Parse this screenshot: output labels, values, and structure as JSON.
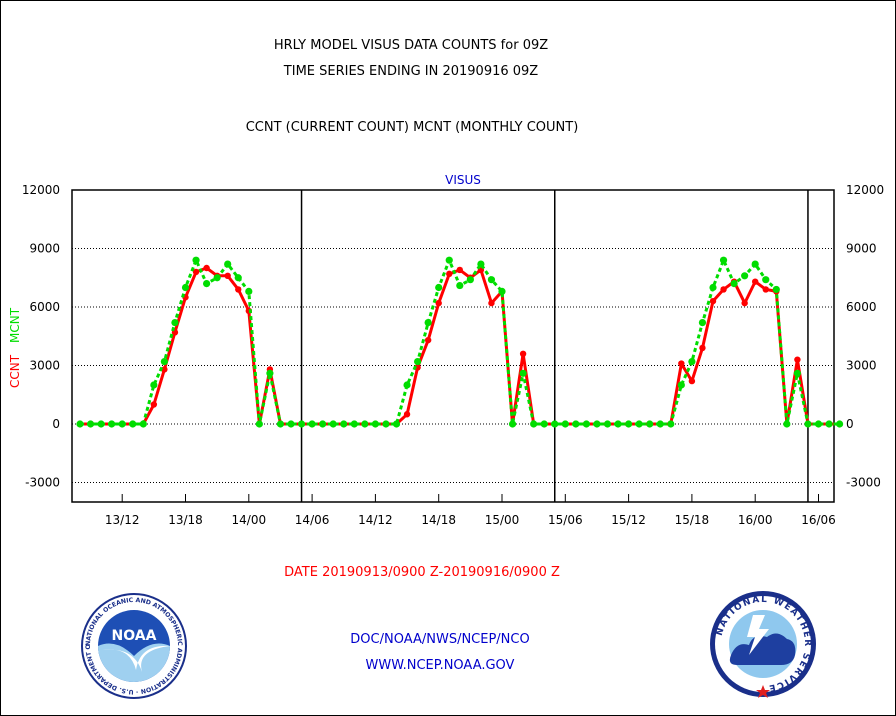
{
  "header": {
    "title_line1": "HRLY MODEL VISUS DATA COUNTS for 09Z",
    "title_line2": "TIME SERIES ENDING IN 20190916 09Z",
    "subtitle": "CCNT (CURRENT COUNT) MCNT (MONTHLY COUNT)"
  },
  "footer": {
    "date_range": "DATE 20190913/0900 Z-20190916/0900 Z",
    "org_line": "DOC/NOAA/NWS/NCEP/NCO",
    "url_line": "WWW.NCEP.NOAA.GOV"
  },
  "logos": {
    "noaa": {
      "center_text": "NOAA",
      "ring_text": "NATIONAL OCEANIC AND ATMOSPHERIC ADMINISTRATION · U.S. DEPARTMENT OF COMMERCE"
    },
    "nws": {
      "ring_text": "NATIONAL WEATHER SERVICE"
    }
  },
  "colors": {
    "ccnt": "#ff0000",
    "mcnt": "#00dd00",
    "blue_text": "#0000cc",
    "red_text": "#ff0000"
  },
  "chart_data": {
    "type": "line",
    "title": "VISUS",
    "ylabel_left": [
      "CCNT",
      "MCNT"
    ],
    "ylim": [
      -4000,
      12000
    ],
    "yticks": [
      -3000,
      0,
      3000,
      6000,
      9000,
      12000
    ],
    "x_unit": "hour",
    "xlim": [
      0,
      72.8
    ],
    "xtick_hours": [
      4,
      10,
      16,
      22,
      28,
      34,
      40,
      46,
      52,
      58,
      64,
      70
    ],
    "xtick_labels": [
      "13/12",
      "13/18",
      "14/00",
      "14/06",
      "14/12",
      "14/18",
      "15/00",
      "15/06",
      "15/12",
      "15/18",
      "16/00",
      "16/06"
    ],
    "day_boundary_hours": [
      21,
      45,
      69
    ],
    "series": [
      {
        "name": "CCNT",
        "color": "#ff0000",
        "x": [
          0,
          1,
          2,
          3,
          4,
          5,
          6,
          7,
          8,
          9,
          10,
          11,
          12,
          13,
          14,
          15,
          16,
          17,
          18,
          19,
          20,
          21,
          22,
          23,
          24,
          25,
          26,
          27,
          28,
          29,
          30,
          31,
          32,
          33,
          34,
          35,
          36,
          37,
          38,
          39,
          40,
          41,
          42,
          43,
          44,
          45,
          46,
          47,
          48,
          49,
          50,
          51,
          52,
          53,
          54,
          55,
          56,
          57,
          58,
          59,
          60,
          61,
          62,
          63,
          64,
          65,
          66,
          67,
          68,
          69,
          70,
          71,
          72
        ],
        "values": [
          0,
          0,
          0,
          0,
          0,
          0,
          0,
          1000,
          2800,
          4700,
          6500,
          7800,
          8000,
          7600,
          7600,
          6900,
          5800,
          0,
          2800,
          0,
          0,
          0,
          0,
          0,
          0,
          0,
          0,
          0,
          0,
          0,
          0,
          500,
          2900,
          4300,
          6200,
          7700,
          7900,
          7500,
          7900,
          6200,
          6800,
          0,
          3600,
          0,
          0,
          0,
          0,
          0,
          0,
          0,
          0,
          0,
          0,
          0,
          0,
          0,
          0,
          3100,
          2200,
          3900,
          6300,
          6900,
          7300,
          6200,
          7300,
          6900,
          6800,
          0,
          3300,
          0,
          0,
          0,
          0
        ]
      },
      {
        "name": "MCNT",
        "color": "#00dd00",
        "x": [
          0,
          1,
          2,
          3,
          4,
          5,
          6,
          7,
          8,
          9,
          10,
          11,
          12,
          13,
          14,
          15,
          16,
          17,
          18,
          19,
          20,
          21,
          22,
          23,
          24,
          25,
          26,
          27,
          28,
          29,
          30,
          31,
          32,
          33,
          34,
          35,
          36,
          37,
          38,
          39,
          40,
          41,
          42,
          43,
          44,
          45,
          46,
          47,
          48,
          49,
          50,
          51,
          52,
          53,
          54,
          55,
          56,
          57,
          58,
          59,
          60,
          61,
          62,
          63,
          64,
          65,
          66,
          67,
          68,
          69,
          70,
          71,
          72
        ],
        "values": [
          0,
          0,
          0,
          0,
          0,
          0,
          0,
          2000,
          3200,
          5200,
          7000,
          8400,
          7200,
          7500,
          8200,
          7500,
          6800,
          0,
          2600,
          0,
          0,
          0,
          0,
          0,
          0,
          0,
          0,
          0,
          0,
          0,
          0,
          2000,
          3200,
          5200,
          7000,
          8400,
          7100,
          7400,
          8200,
          7400,
          6800,
          0,
          2600,
          0,
          0,
          0,
          0,
          0,
          0,
          0,
          0,
          0,
          0,
          0,
          0,
          0,
          0,
          2000,
          3200,
          5200,
          7000,
          8400,
          7200,
          7600,
          8200,
          7400,
          6900,
          0,
          2600,
          0,
          0,
          0,
          0
        ]
      }
    ],
    "grid": "dotted horizontal"
  }
}
